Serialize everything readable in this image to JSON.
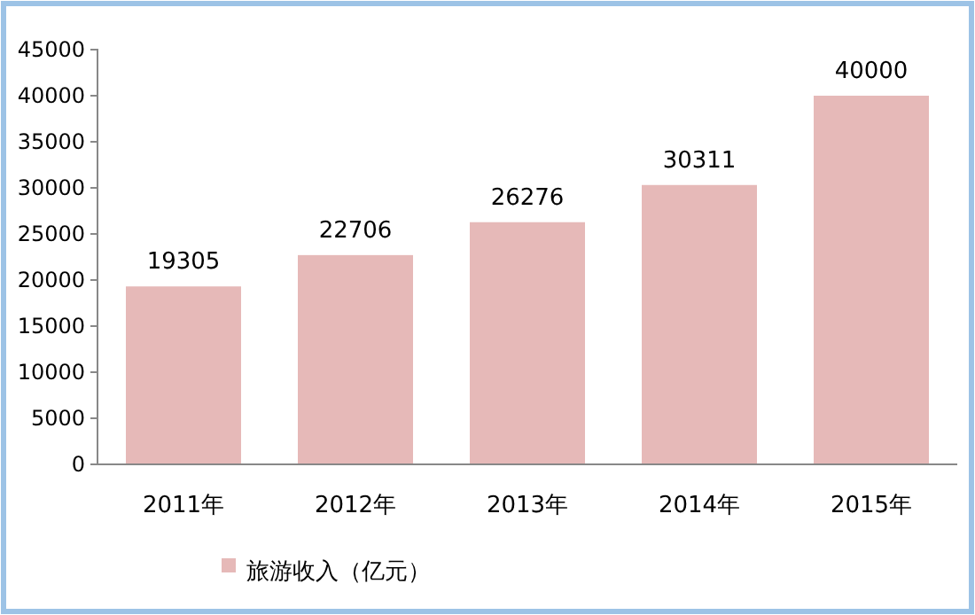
{
  "chart_data": {
    "type": "bar",
    "categories": [
      "2011年",
      "2012年",
      "2013年",
      "2014年",
      "2015年"
    ],
    "series": [
      {
        "name": "旅游收入（亿元）",
        "color": "#e6b9b8",
        "values": [
          19305,
          22706,
          26276,
          30311,
          40000
        ]
      }
    ],
    "ylim": [
      0,
      45000
    ],
    "yticks": [
      0,
      5000,
      10000,
      15000,
      20000,
      25000,
      30000,
      35000,
      40000,
      45000
    ],
    "data_labels": true,
    "legend": "bottom",
    "grid": false
  }
}
